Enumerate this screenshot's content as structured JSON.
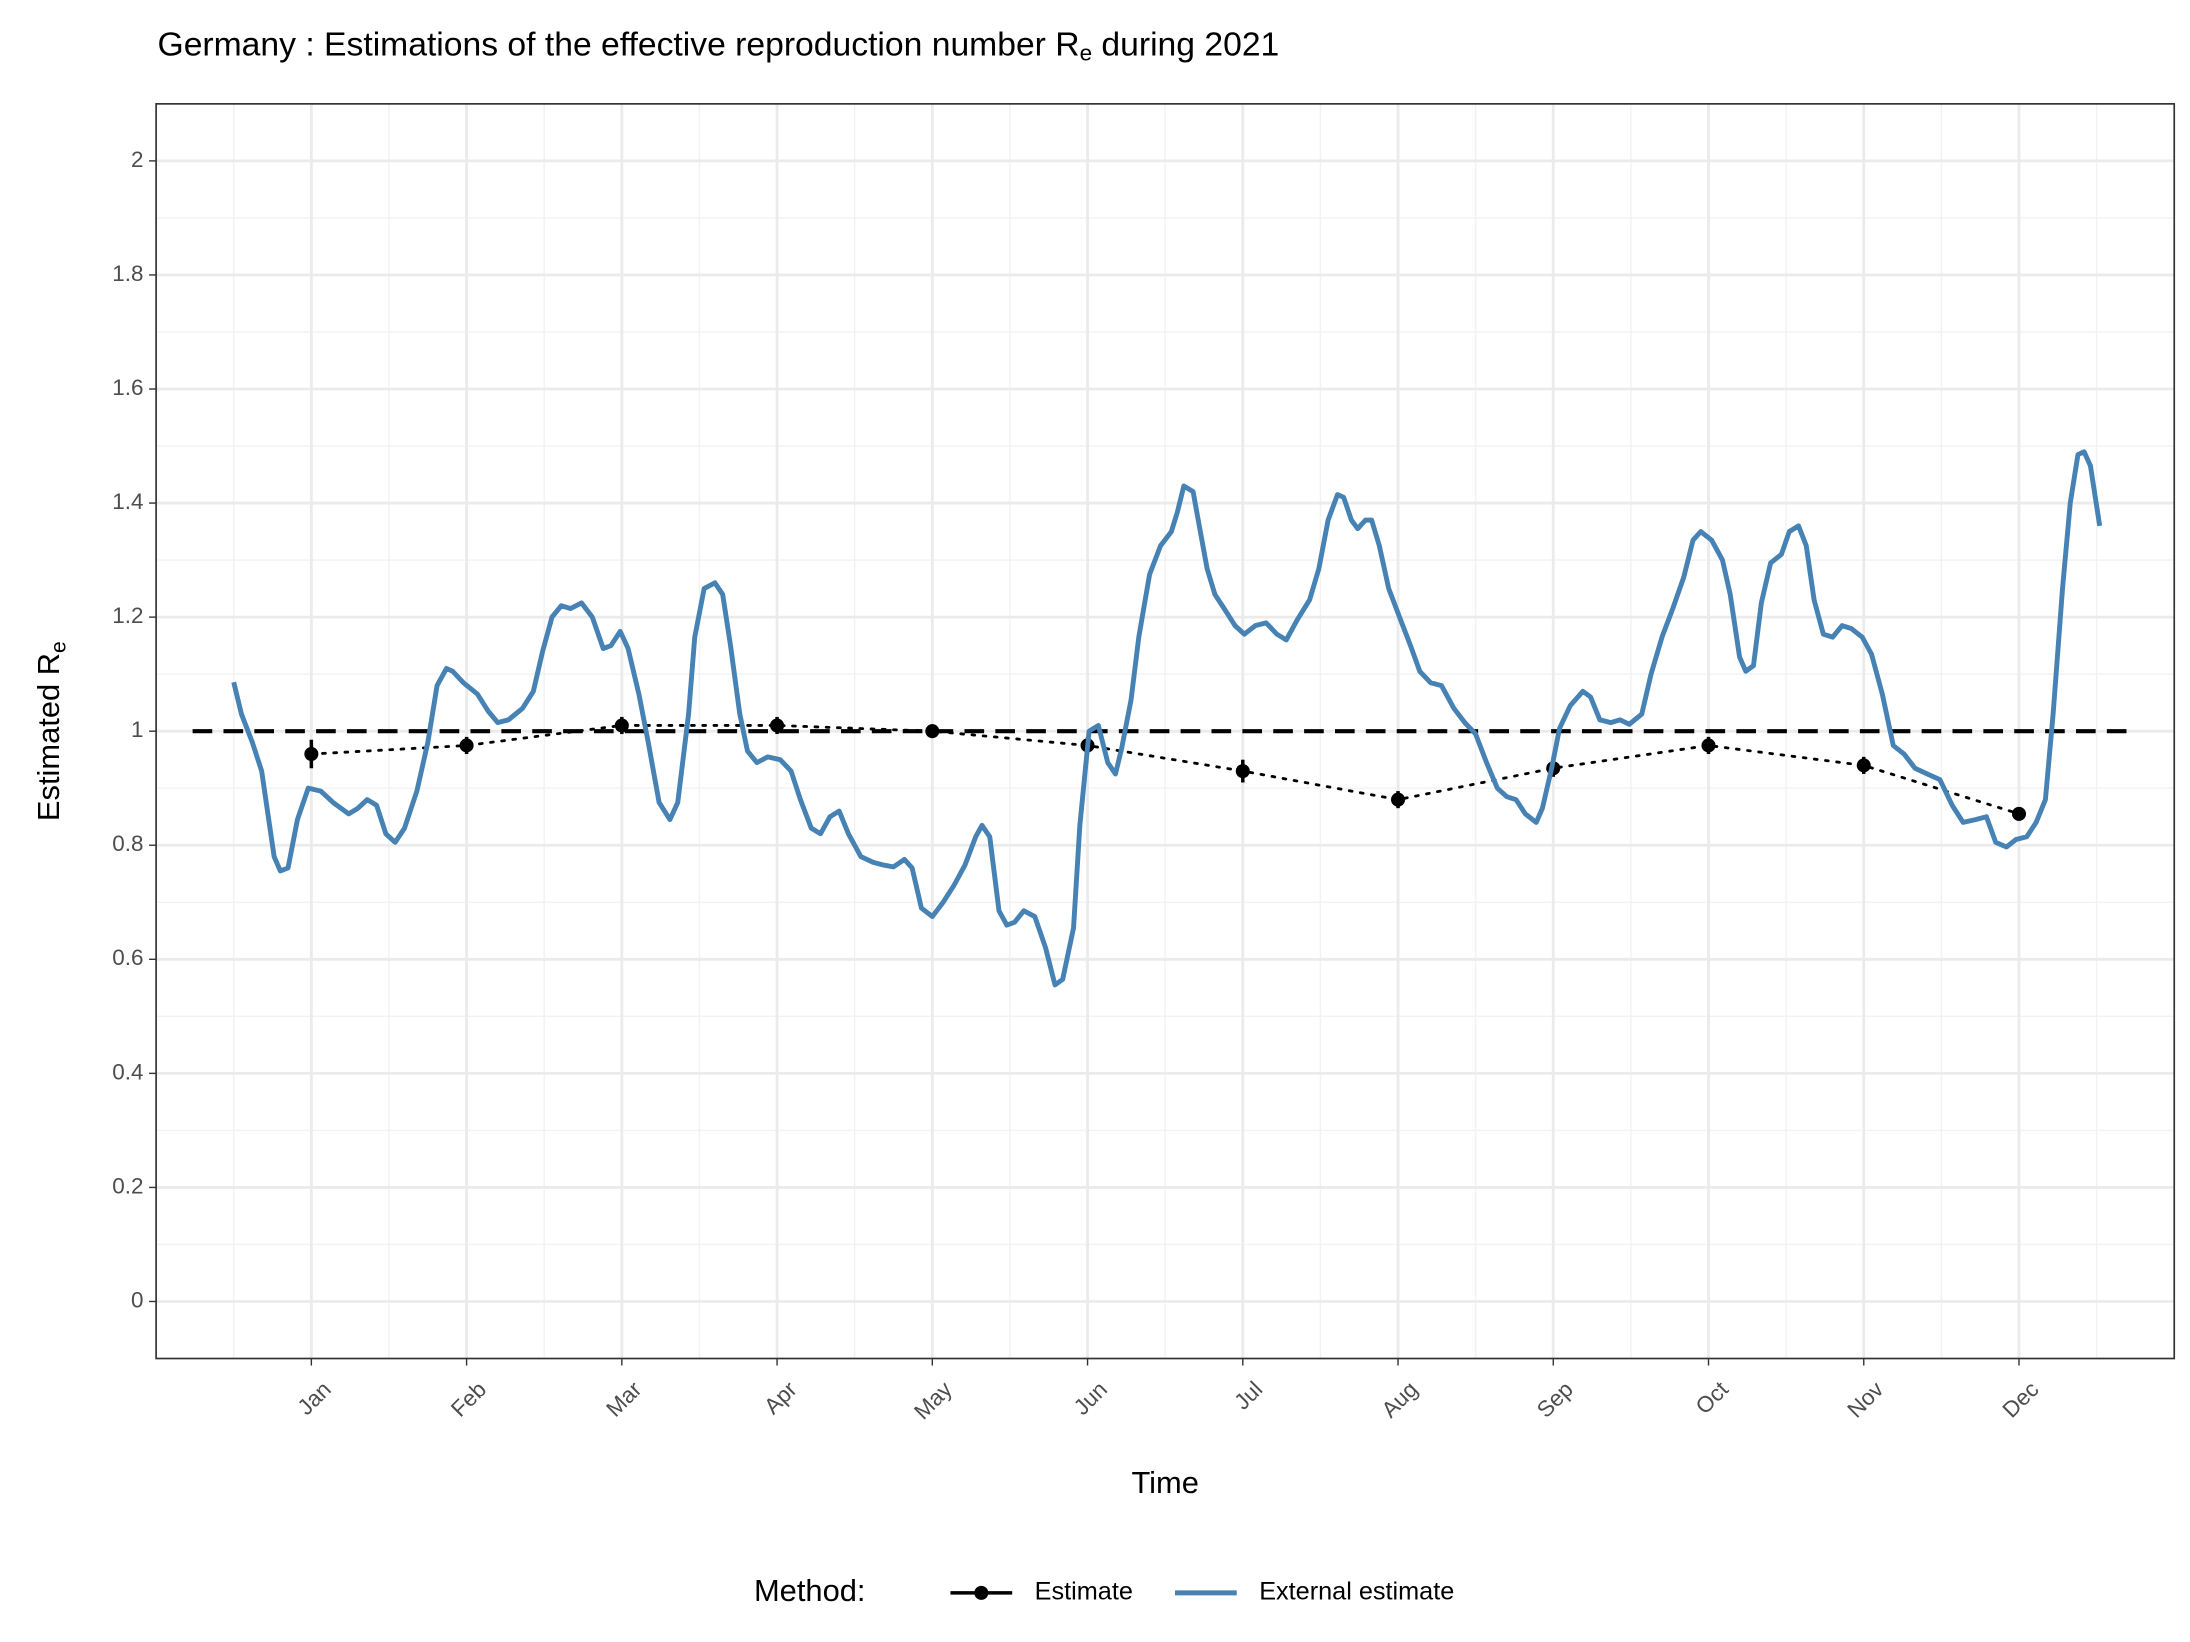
{
  "chart_data": {
    "type": "line",
    "title": {
      "before": "Germany : Estimations of the effective reproduction number R",
      "subscript": "e",
      "after": " during 2021"
    },
    "x_label": "Time",
    "y_label": {
      "before": "Estimated R",
      "subscript": "e"
    },
    "legend_title": "Method:",
    "legend_position": "bottom",
    "grid": true,
    "reference_line": 1,
    "xlim": [
      0,
      13
    ],
    "xticks": [
      {
        "value": 1,
        "label": "Jan"
      },
      {
        "value": 2,
        "label": "Feb"
      },
      {
        "value": 3,
        "label": "Mar"
      },
      {
        "value": 4,
        "label": "Apr"
      },
      {
        "value": 5,
        "label": "May"
      },
      {
        "value": 6,
        "label": "Jun"
      },
      {
        "value": 7,
        "label": "Jul"
      },
      {
        "value": 8,
        "label": "Aug"
      },
      {
        "value": 9,
        "label": "Sep"
      },
      {
        "value": 10,
        "label": "Oct"
      },
      {
        "value": 11,
        "label": "Nov"
      },
      {
        "value": 12,
        "label": "Dec"
      }
    ],
    "ylim": [
      -0.1,
      2.1
    ],
    "yticks": [
      0,
      0.2,
      0.4,
      0.6,
      0.8,
      1,
      1.2,
      1.4,
      1.6,
      1.8,
      2
    ],
    "series": [
      {
        "name": "Estimate",
        "color": "#000000",
        "x": [
          1,
          2,
          3,
          4,
          5,
          6,
          7,
          8,
          9,
          10,
          11,
          12
        ],
        "values": [
          0.96,
          0.975,
          1.01,
          1.01,
          1.0,
          0.975,
          0.93,
          0.88,
          0.935,
          0.975,
          0.94,
          0.855
        ],
        "errors": [
          0.025,
          0.015,
          0.015,
          0.015,
          0.012,
          0.015,
          0.02,
          0.015,
          0.015,
          0.015,
          0.015,
          0.012
        ]
      },
      {
        "name": "External estimate",
        "color": "#4682b4",
        "x": [
          0.5,
          0.55,
          0.62,
          0.68,
          0.76,
          0.8,
          0.85,
          0.91,
          0.98,
          1.06,
          1.14,
          1.24,
          1.3,
          1.36,
          1.42,
          1.48,
          1.54,
          1.6,
          1.68,
          1.75,
          1.81,
          1.87,
          1.91,
          1.98,
          2.07,
          2.14,
          2.2,
          2.27,
          2.36,
          2.43,
          2.49,
          2.55,
          2.61,
          2.67,
          2.74,
          2.81,
          2.88,
          2.93,
          2.99,
          3.04,
          3.11,
          3.17,
          3.24,
          3.31,
          3.36,
          3.43,
          3.47,
          3.53,
          3.6,
          3.65,
          3.7,
          3.76,
          3.81,
          3.87,
          3.94,
          4.02,
          4.09,
          4.15,
          4.22,
          4.28,
          4.34,
          4.4,
          4.46,
          4.54,
          4.62,
          4.69,
          4.75,
          4.82,
          4.87,
          4.93,
          5.0,
          5.07,
          5.14,
          5.21,
          5.28,
          5.32,
          5.37,
          5.43,
          5.48,
          5.53,
          5.59,
          5.66,
          5.73,
          5.79,
          5.84,
          5.91,
          5.95,
          6.01,
          6.07,
          6.13,
          6.18,
          6.22,
          6.28,
          6.33,
          6.4,
          6.47,
          6.54,
          6.58,
          6.62,
          6.68,
          6.72,
          6.77,
          6.82,
          6.88,
          6.95,
          7.01,
          7.08,
          7.15,
          7.22,
          7.28,
          7.35,
          7.43,
          7.49,
          7.55,
          7.61,
          7.65,
          7.7,
          7.74,
          7.79,
          7.83,
          7.88,
          7.94,
          8.01,
          8.08,
          8.14,
          8.21,
          8.28,
          8.36,
          8.43,
          8.5,
          8.57,
          8.64,
          8.7,
          8.76,
          8.82,
          8.89,
          8.93,
          8.99,
          9.04,
          9.11,
          9.19,
          9.24,
          9.3,
          9.37,
          9.43,
          9.49,
          9.57,
          9.63,
          9.7,
          9.77,
          9.84,
          9.9,
          9.95,
          10.02,
          10.09,
          10.14,
          10.2,
          10.24,
          10.29,
          10.34,
          10.4,
          10.47,
          10.52,
          10.58,
          10.63,
          10.68,
          10.74,
          10.8,
          10.86,
          10.92,
          10.99,
          11.05,
          11.12,
          11.19,
          11.26,
          11.33,
          11.41,
          11.49,
          11.57,
          11.64,
          11.72,
          11.79,
          11.85,
          11.92,
          11.98,
          12.05,
          12.11,
          12.17,
          12.22,
          12.28,
          12.33,
          12.38,
          12.42,
          12.46,
          12.52
        ],
        "values": [
          1.086,
          1.03,
          0.98,
          0.93,
          0.78,
          0.755,
          0.76,
          0.845,
          0.9,
          0.895,
          0.875,
          0.855,
          0.865,
          0.88,
          0.87,
          0.82,
          0.805,
          0.83,
          0.895,
          0.98,
          1.08,
          1.11,
          1.105,
          1.085,
          1.065,
          1.035,
          1.015,
          1.02,
          1.04,
          1.07,
          1.14,
          1.2,
          1.22,
          1.215,
          1.225,
          1.2,
          1.145,
          1.15,
          1.175,
          1.145,
          1.065,
          0.98,
          0.875,
          0.845,
          0.875,
          1.03,
          1.165,
          1.25,
          1.26,
          1.24,
          1.15,
          1.03,
          0.965,
          0.945,
          0.955,
          0.95,
          0.93,
          0.88,
          0.83,
          0.82,
          0.85,
          0.86,
          0.82,
          0.78,
          0.77,
          0.765,
          0.762,
          0.775,
          0.76,
          0.69,
          0.675,
          0.7,
          0.73,
          0.765,
          0.815,
          0.835,
          0.815,
          0.685,
          0.66,
          0.665,
          0.685,
          0.675,
          0.62,
          0.555,
          0.565,
          0.655,
          0.835,
          1.0,
          1.01,
          0.945,
          0.925,
          0.97,
          1.055,
          1.165,
          1.275,
          1.325,
          1.35,
          1.385,
          1.43,
          1.42,
          1.36,
          1.285,
          1.24,
          1.215,
          1.185,
          1.17,
          1.185,
          1.19,
          1.17,
          1.16,
          1.195,
          1.23,
          1.285,
          1.37,
          1.415,
          1.41,
          1.37,
          1.355,
          1.37,
          1.37,
          1.325,
          1.25,
          1.2,
          1.15,
          1.105,
          1.085,
          1.08,
          1.04,
          1.015,
          0.995,
          0.945,
          0.9,
          0.885,
          0.88,
          0.855,
          0.84,
          0.865,
          0.935,
          1.005,
          1.045,
          1.07,
          1.06,
          1.02,
          1.015,
          1.02,
          1.012,
          1.03,
          1.1,
          1.165,
          1.215,
          1.27,
          1.335,
          1.35,
          1.335,
          1.3,
          1.24,
          1.13,
          1.105,
          1.115,
          1.225,
          1.295,
          1.31,
          1.35,
          1.36,
          1.325,
          1.23,
          1.17,
          1.165,
          1.185,
          1.18,
          1.165,
          1.135,
          1.065,
          0.975,
          0.96,
          0.935,
          0.925,
          0.915,
          0.87,
          0.84,
          0.845,
          0.85,
          0.805,
          0.797,
          0.81,
          0.815,
          0.84,
          0.88,
          1.03,
          1.25,
          1.4,
          1.485,
          1.49,
          1.465,
          1.36
        ]
      }
    ]
  }
}
